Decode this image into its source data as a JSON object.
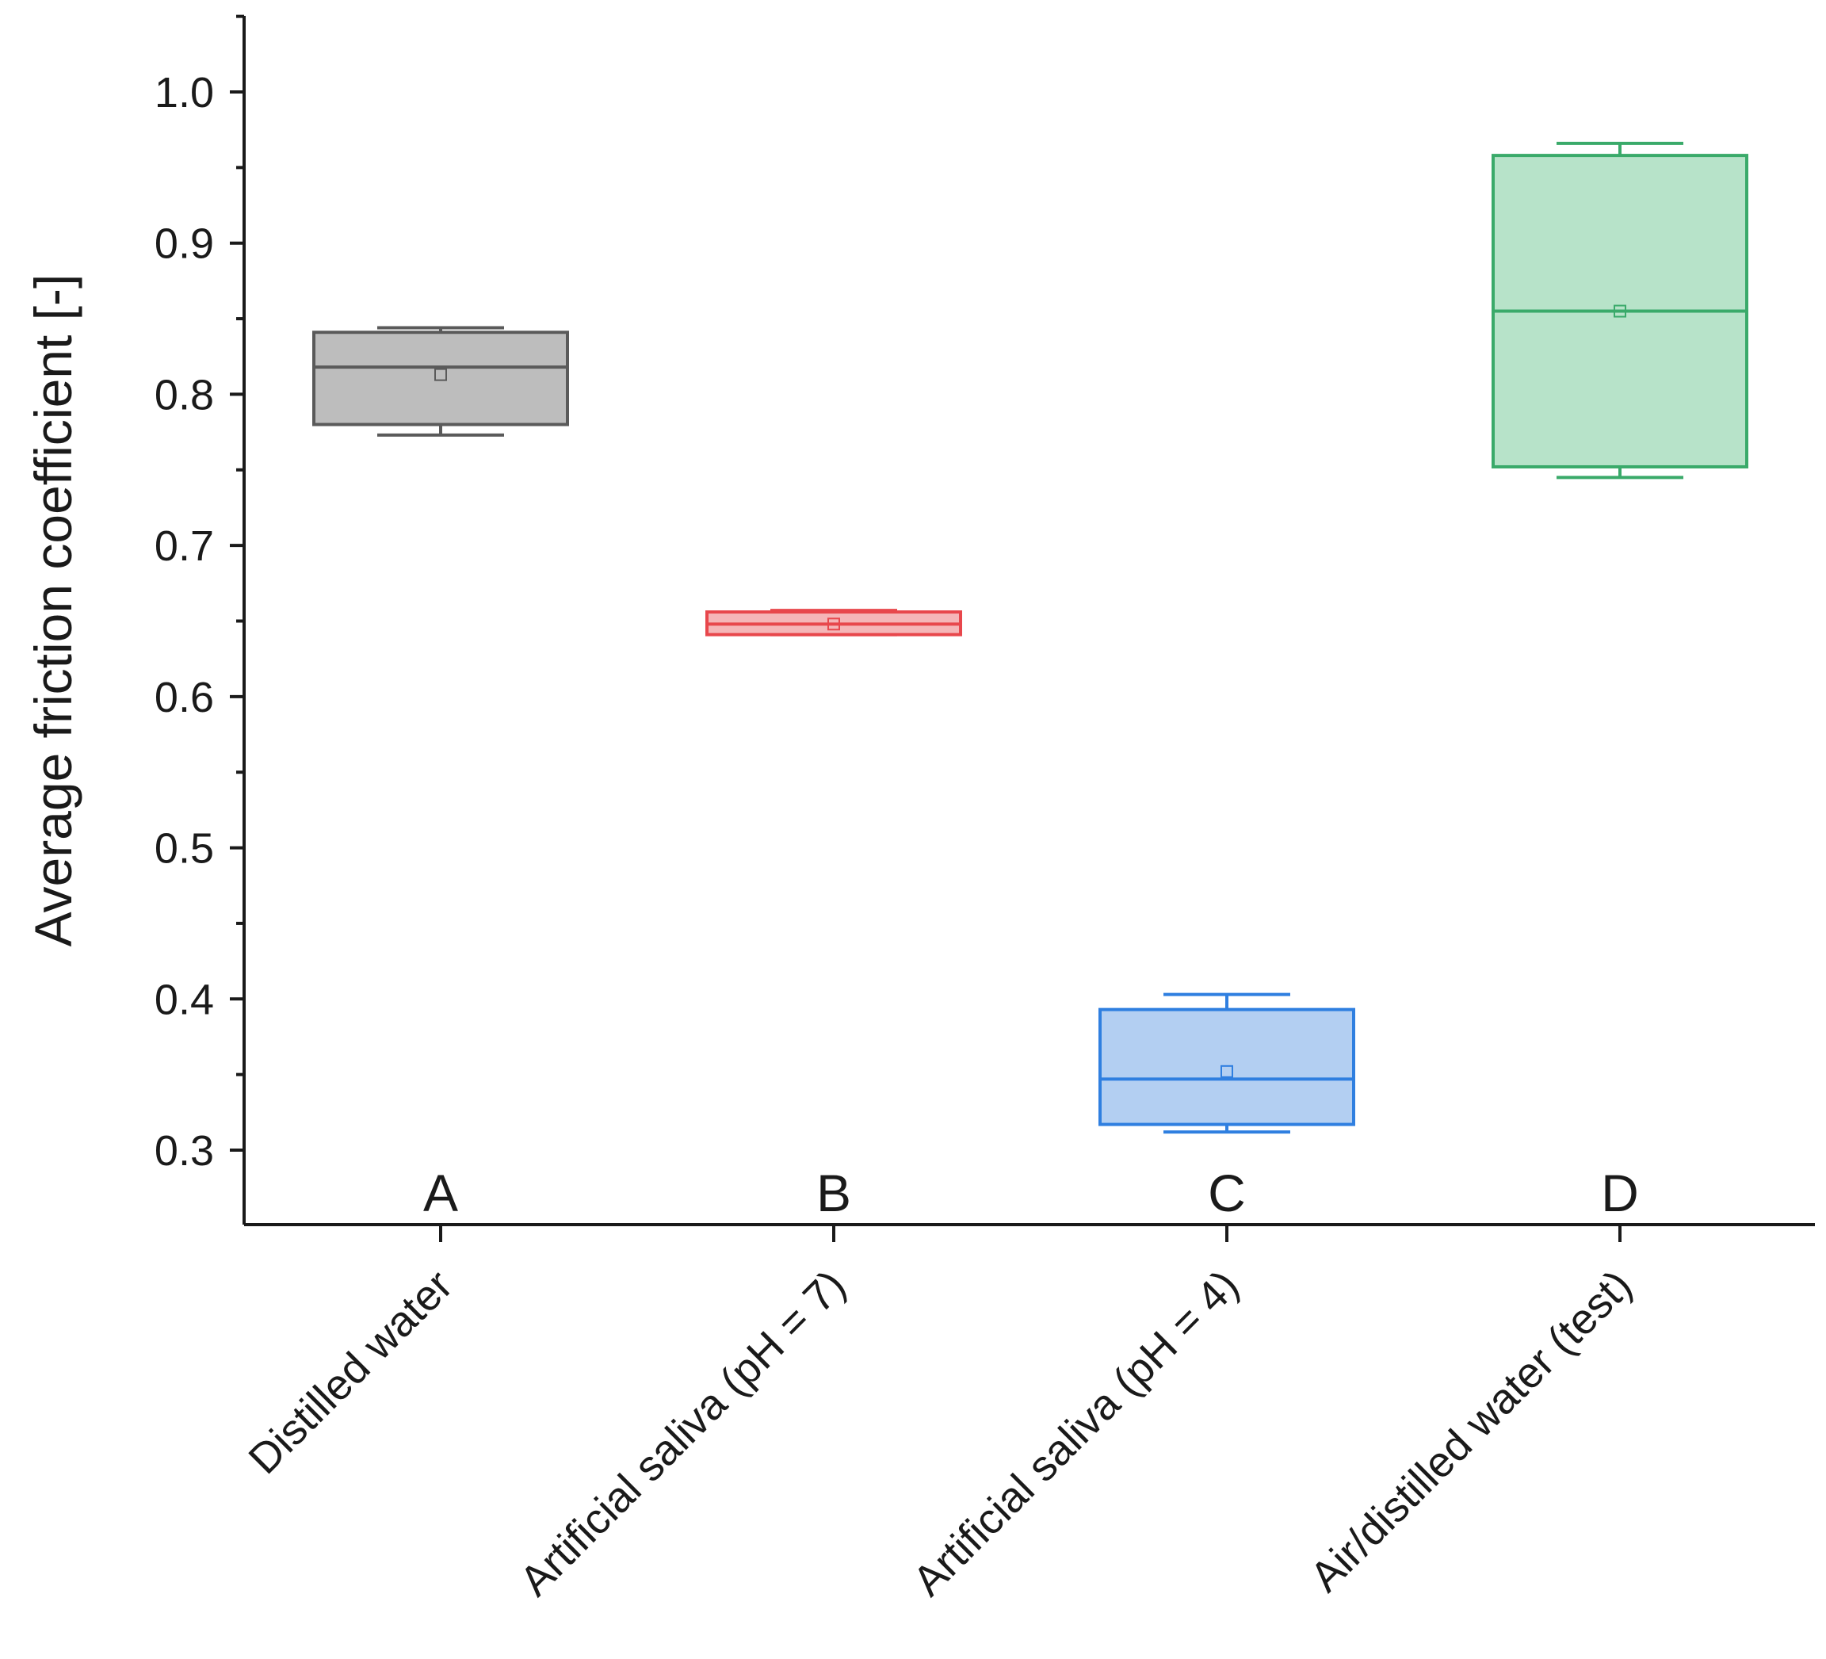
{
  "chart_data": {
    "type": "box",
    "title": "",
    "xlabel": "",
    "ylabel": "Average friction coefficient [-]",
    "ylim": [
      0.25,
      1.05
    ],
    "yticks": [
      "0.3",
      "0.4",
      "0.5",
      "0.6",
      "0.7",
      "0.8",
      "0.9",
      "1.0"
    ],
    "ytick_values": [
      0.3,
      0.4,
      0.5,
      0.6,
      0.7,
      0.8,
      0.9,
      1.0
    ],
    "categories": [
      "Distilled water",
      "Artificial saliva (pH = 7)",
      "Artificial saliva (pH = 4)",
      "Air/distilled water (test)"
    ],
    "letters": [
      "A",
      "B",
      "C",
      "D"
    ],
    "series": [
      {
        "name": "Distilled water",
        "whisker_low": 0.773,
        "q1": 0.78,
        "median": 0.818,
        "q3": 0.841,
        "whisker_high": 0.844,
        "mean": 0.813,
        "stroke": "#5a5a5a",
        "fill": "#bdbdbd"
      },
      {
        "name": "Artificial saliva (pH = 7)",
        "whisker_low": 0.641,
        "q1": 0.641,
        "median": 0.648,
        "q3": 0.656,
        "whisker_high": 0.657,
        "mean": 0.648,
        "stroke": "#e8474c",
        "fill": "#f5b6b8"
      },
      {
        "name": "Artificial saliva (pH = 4)",
        "whisker_low": 0.312,
        "q1": 0.317,
        "median": 0.347,
        "q3": 0.393,
        "whisker_high": 0.403,
        "mean": 0.352,
        "stroke": "#2f7fe0",
        "fill": "#b3cff2"
      },
      {
        "name": "Air/distilled water (test)",
        "whisker_low": 0.745,
        "q1": 0.752,
        "median": 0.855,
        "q3": 0.958,
        "whisker_high": 0.966,
        "mean": 0.855,
        "stroke": "#3aaa6a",
        "fill": "#b7e3c9"
      }
    ],
    "grid": false,
    "legend": "none"
  }
}
